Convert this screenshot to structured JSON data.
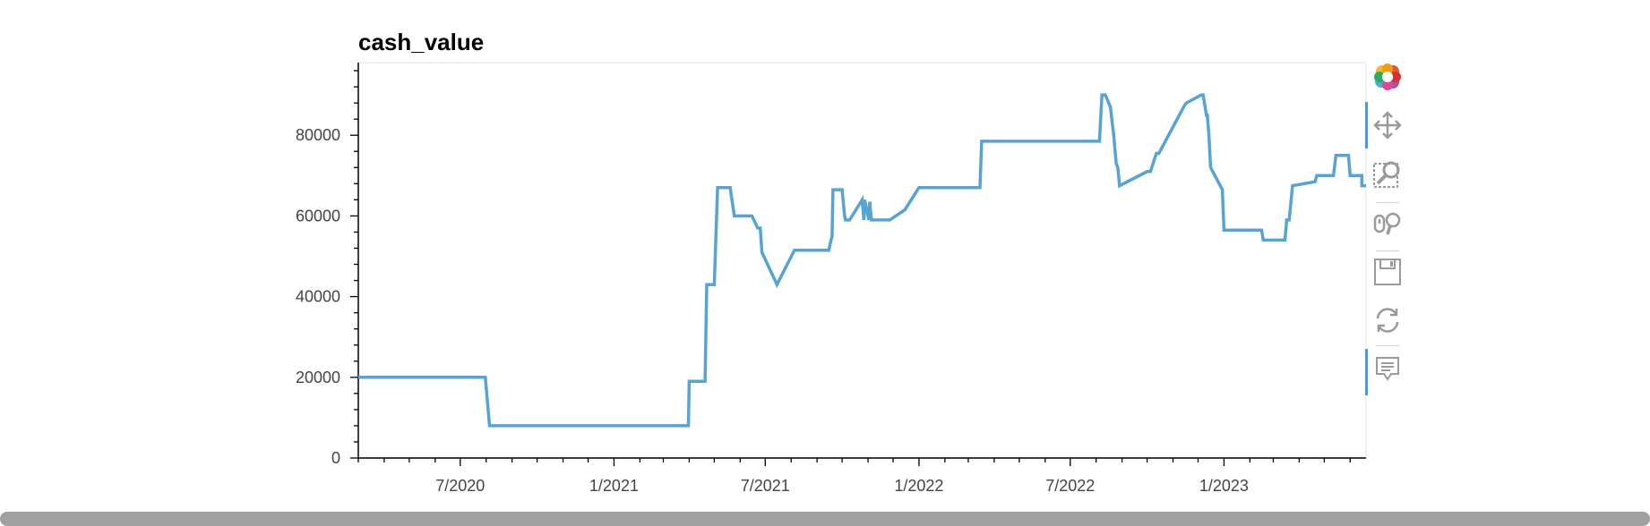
{
  "chart_data": {
    "type": "line",
    "title": "cash_value",
    "xlabel": "",
    "ylabel": "",
    "x_ticks": [
      "7/2020",
      "1/2021",
      "7/2021",
      "1/2022",
      "7/2022",
      "1/2023"
    ],
    "y_ticks": [
      0,
      20000,
      40000,
      60000,
      80000
    ],
    "ylim": [
      0,
      98000
    ],
    "xlim": [
      "2020-03-01",
      "2023-06-20"
    ],
    "grid": false,
    "color": "#56a3d6",
    "series": [
      {
        "x": [
          "2020-03-01",
          "2020-07-31",
          "2020-08-05",
          "2021-03-31",
          "2021-04-01",
          "2021-04-20",
          "2021-04-22",
          "2021-05-01",
          "2021-05-05",
          "2021-05-20",
          "2021-05-25",
          "2021-06-15",
          "2021-06-22",
          "2021-06-25",
          "2021-06-27",
          "2021-07-15",
          "2021-08-05",
          "2021-09-15",
          "2021-09-19",
          "2021-09-20",
          "2021-10-01",
          "2021-10-04",
          "2021-10-05",
          "2021-10-10",
          "2021-10-25",
          "2021-10-27",
          "2021-10-28",
          "2021-11-02",
          "2021-11-03",
          "2021-11-05",
          "2021-11-27",
          "2021-12-15",
          "2022-01-01",
          "2022-03-15",
          "2022-03-17",
          "2022-08-05",
          "2022-08-08",
          "2022-08-12",
          "2022-08-18",
          "2022-08-22",
          "2022-08-25",
          "2022-08-27",
          "2022-08-29",
          "2022-10-01",
          "2022-10-05",
          "2022-10-12",
          "2022-10-15",
          "2022-11-15",
          "2022-11-17",
          "2022-12-05",
          "2022-12-07",
          "2022-12-11",
          "2022-12-12",
          "2022-12-14",
          "2022-12-16",
          "2022-12-30",
          "2023-01-01",
          "2023-02-15",
          "2023-02-17",
          "2023-03-15",
          "2023-03-17",
          "2023-03-20",
          "2023-03-24",
          "2023-04-20",
          "2023-04-22",
          "2023-05-12",
          "2023-05-15",
          "2023-05-30",
          "2023-06-01",
          "2023-06-15",
          "2023-06-15",
          "2023-06-20"
        ],
        "values": [
          20000,
          20000,
          8000,
          8000,
          19000,
          19000,
          43000,
          43000,
          67000,
          67000,
          60000,
          60000,
          57000,
          57000,
          51000,
          43000,
          51500,
          51500,
          55000,
          66500,
          66500,
          60000,
          59000,
          59000,
          64000,
          59000,
          64000,
          59000,
          63500,
          59000,
          59000,
          61500,
          67000,
          67000,
          78500,
          78500,
          90000,
          90000,
          87000,
          80000,
          73000,
          72000,
          67500,
          71000,
          71000,
          75500,
          75500,
          87500,
          88000,
          90000,
          90000,
          85000,
          85000,
          80000,
          72000,
          66500,
          56500,
          56500,
          54000,
          54000,
          59000,
          59000,
          67500,
          68500,
          70000,
          70000,
          75000,
          75000,
          70000,
          70000,
          67500,
          67500
        ]
      }
    ]
  },
  "toolbar": {
    "tools": [
      "bokeh-logo-icon",
      "pan-icon",
      "box-zoom-icon",
      "wheel-zoom-icon",
      "save-icon",
      "reset-icon",
      "hover-icon"
    ]
  }
}
